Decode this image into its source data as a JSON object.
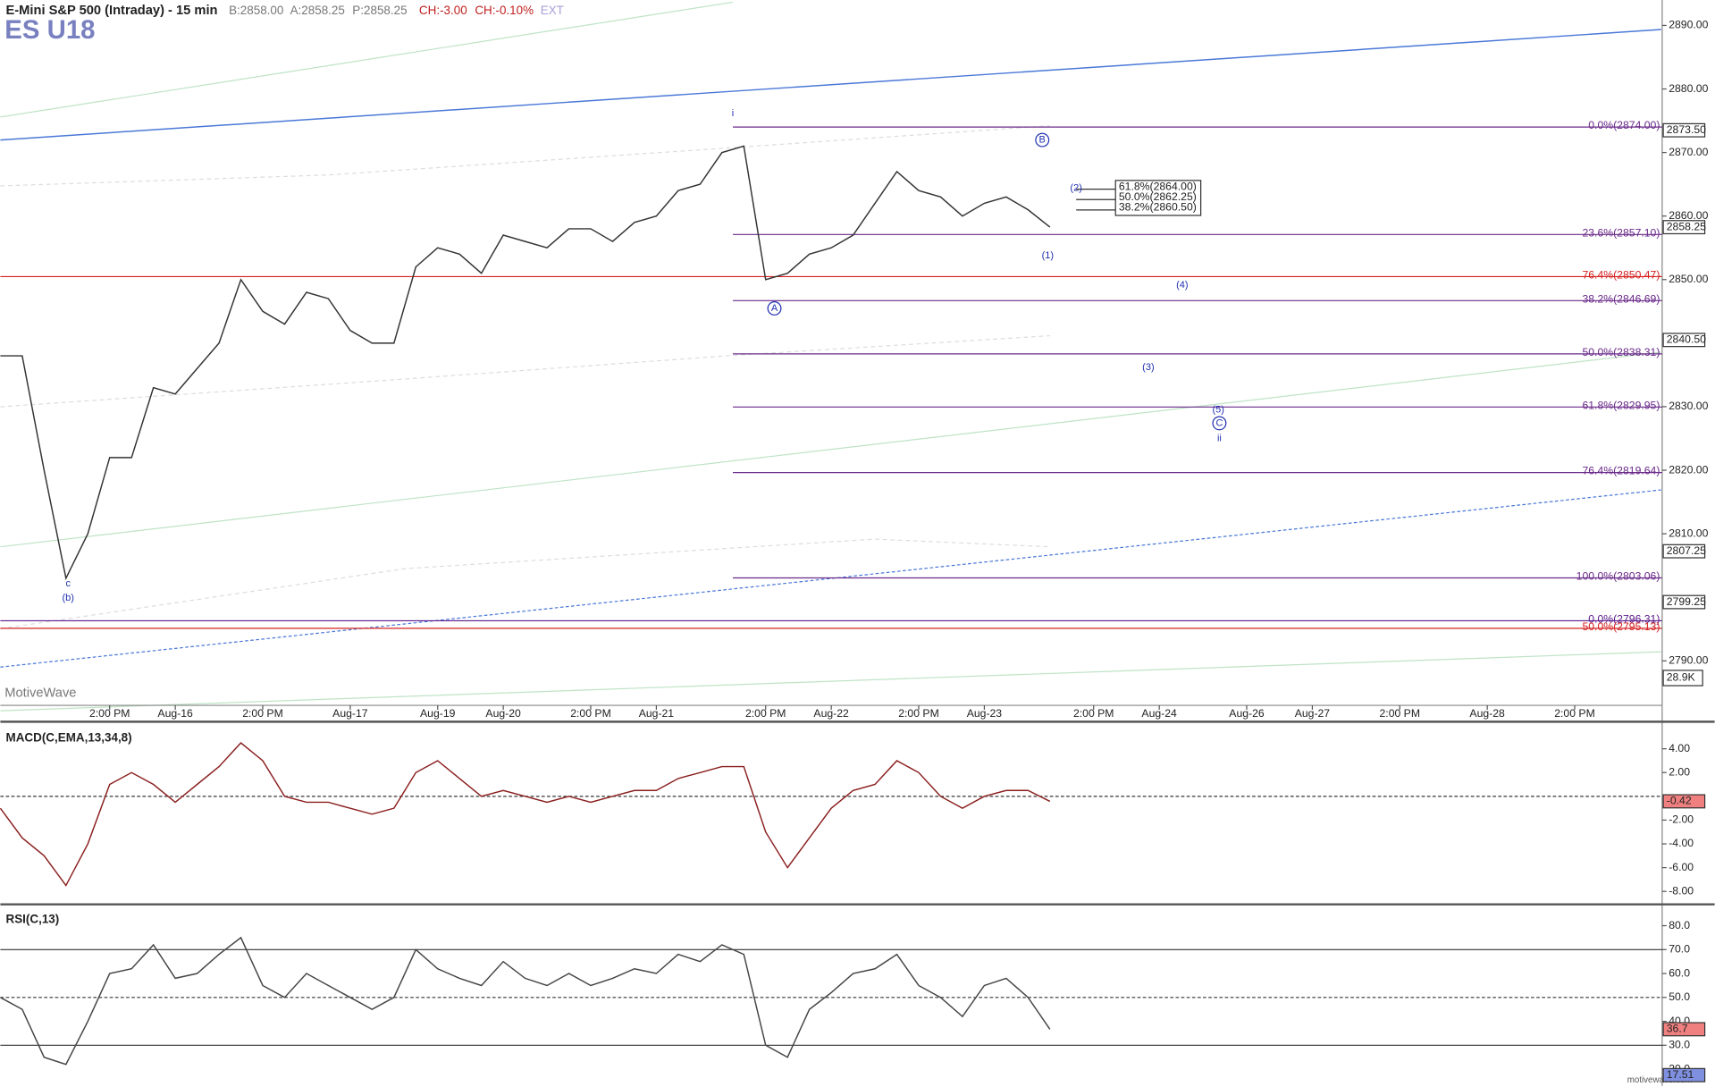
{
  "header": {
    "title": "E-Mini S&P 500 (Intraday) - 15 min",
    "bid": "B:2858.00",
    "ask": "A:2858.25",
    "price": "P:2858.25",
    "change": "CH:-3.00",
    "change_pct": "CH:-0.10%",
    "session": "EXT",
    "symbol": "ES U18",
    "watermark": "MotiveWave",
    "footer": "motivewave.com",
    "volume_label": "28.9K"
  },
  "chart_data": [
    {
      "type": "line",
      "categories": [
        null,
        null,
        null,
        null,
        null,
        "2:00 PM",
        null,
        null,
        "Aug-16",
        null,
        null,
        null,
        "2:00 PM",
        null,
        null,
        null,
        "Aug-17",
        null,
        null,
        null,
        "Aug-19",
        null,
        null,
        "Aug-20",
        null,
        null,
        null,
        "2:00 PM",
        null,
        null,
        "Aug-21",
        null,
        null,
        null,
        null,
        "2:00 PM",
        null,
        null,
        "Aug-22",
        null,
        null,
        null,
        "2:00 PM",
        null,
        null,
        "Aug-23",
        null,
        null,
        null,
        null,
        "2:00 PM",
        null,
        null,
        "Aug-24",
        null,
        null,
        null,
        "Aug-26",
        null,
        null,
        "Aug-27",
        null,
        null,
        null,
        "2:00 PM",
        null,
        null,
        null,
        "Aug-28",
        null,
        null,
        null,
        "2:00 PM",
        null,
        null,
        null
      ],
      "series": [
        {
          "color": "#333333",
          "values": [
            2838,
            2838,
            2820,
            2803,
            2810,
            2822,
            2822,
            2833,
            2832,
            2836,
            2840,
            2850,
            2845,
            2843,
            2848,
            2847,
            2842,
            2840,
            2840,
            2852,
            2855,
            2854,
            2851,
            2857,
            2856,
            2855,
            2858,
            2858,
            2856,
            2859,
            2860,
            2864,
            2865,
            2870,
            2871,
            2850,
            2851,
            2854,
            2855,
            2857,
            2862,
            2867,
            2864,
            2863,
            2860,
            2862,
            2863,
            2861,
            2858.25,
            null,
            null,
            null,
            null,
            null,
            null,
            null,
            null,
            null,
            null,
            null,
            null,
            null,
            null,
            null,
            null,
            null,
            null,
            null,
            null,
            null,
            null,
            null,
            null,
            null,
            null,
            null
          ]
        }
      ],
      "ylim": [
        2783,
        2894
      ],
      "yticks": [
        {
          "value": 2890,
          "label": "2890.00"
        },
        {
          "value": 2880,
          "label": "2880.00"
        },
        {
          "value": 2870,
          "label": "2870.00"
        },
        {
          "value": 2860,
          "label": "2860.00"
        },
        {
          "value": 2850,
          "label": "2850.00"
        },
        {
          "value": 2830,
          "label": "2830.00"
        },
        {
          "value": 2820,
          "label": "2820.00"
        },
        {
          "value": 2810,
          "label": "2810.00"
        },
        {
          "value": 2790,
          "label": "2790.00"
        }
      ],
      "markers": [
        {
          "value": 2873.5,
          "label": "2873.50",
          "color": "#ffffff"
        },
        {
          "value": 2858.25,
          "label": "2858.25",
          "color": "#ffffff"
        },
        {
          "value": 2840.5,
          "label": "2840.50",
          "color": "#ffffff"
        },
        {
          "value": 2807.25,
          "label": "2807.25",
          "color": "#ffffff"
        },
        {
          "value": 2799.25,
          "label": "2799.25",
          "color": "#ffffff"
        }
      ],
      "fib_levels": [
        {
          "value": 2874.0,
          "label": "0.0%(2874.00)"
        },
        {
          "value": 2857.1,
          "label": "23.6%(2857.10)"
        },
        {
          "value": 2846.69,
          "label": "38.2%(2846.69)"
        },
        {
          "value": 2838.31,
          "label": "50.0%(2838.31)"
        },
        {
          "value": 2829.95,
          "label": "61.8%(2829.95)"
        },
        {
          "value": 2819.64,
          "label": "76.4%(2819.64)"
        },
        {
          "value": 2803.06,
          "label": "100.0%(2803.06)"
        }
      ],
      "fib_color": "#6a2a8a",
      "full_levels": [
        {
          "value": 2850.47,
          "label": "76.4%(2850.47)",
          "color": "#d42020"
        },
        {
          "value": 2796.31,
          "label": "0.0%(2796.31)",
          "color": "#5a1a8a"
        },
        {
          "value": 2795.13,
          "label": "50.0%(2795.13)",
          "color": "#d42020"
        }
      ],
      "box_levels": [
        "61.8%(2864.00)",
        "50.0%(2862.25)",
        "38.2%(2860.50)"
      ],
      "wave_labels": [
        "i",
        "B",
        "(2)",
        "(1)",
        "A",
        "(4)",
        "(3)",
        "(5)",
        "C",
        "ii",
        "c",
        "(b)"
      ]
    },
    {
      "type": "line",
      "title": "MACD(C,EMA,13,34,8)",
      "series": [
        {
          "color": "#8b2020",
          "values": [
            -1,
            -3.5,
            -5,
            -7.5,
            -4,
            1,
            2,
            1,
            -0.5,
            1,
            2.5,
            4.5,
            3,
            0,
            -0.5,
            -0.5,
            -1,
            -1.5,
            -1,
            2,
            3,
            1.5,
            0,
            0.5,
            0,
            -0.5,
            0,
            -0.5,
            0,
            0.5,
            0.5,
            1.5,
            2,
            2.5,
            2.5,
            -3,
            -6,
            -3.5,
            -1,
            0.5,
            1,
            3,
            2,
            0,
            -1,
            0,
            0.5,
            0.5,
            -0.42,
            null,
            null,
            null,
            null,
            null,
            null,
            null,
            null,
            null,
            null,
            null,
            null,
            null,
            null,
            null,
            null,
            null,
            null,
            null,
            null,
            null,
            null,
            null,
            null,
            null,
            null,
            null
          ]
        }
      ],
      "ylim": [
        -9,
        6
      ],
      "yticks": [
        {
          "value": 4,
          "label": "4.00"
        },
        {
          "value": 2,
          "label": "2.00"
        },
        {
          "value": -2,
          "label": "-2.00"
        },
        {
          "value": -4,
          "label": "-4.00"
        },
        {
          "value": -6,
          "label": "-6.00"
        },
        {
          "value": -8,
          "label": "-8.00"
        }
      ],
      "ref_lines": [
        0
      ],
      "markers": [
        {
          "value": -0.42,
          "label": "-0.42",
          "color": "#f08080"
        }
      ]
    },
    {
      "type": "line",
      "title": "RSI(C,13)",
      "series": [
        {
          "color": "#444444",
          "values": [
            50,
            45,
            25,
            22,
            40,
            60,
            62,
            72,
            58,
            60,
            68,
            75,
            55,
            50,
            60,
            55,
            50,
            45,
            50,
            70,
            62,
            58,
            55,
            65,
            58,
            55,
            60,
            55,
            58,
            62,
            60,
            68,
            65,
            72,
            68,
            30,
            25,
            45,
            52,
            60,
            62,
            68,
            55,
            50,
            42,
            55,
            58,
            50,
            36.7,
            null,
            null,
            null,
            null,
            null,
            null,
            null,
            null,
            null,
            null,
            null,
            null,
            null,
            null,
            null,
            null,
            null,
            null,
            null,
            null,
            null,
            null,
            null,
            null,
            null,
            null,
            null
          ]
        }
      ],
      "ylim": [
        13,
        88
      ],
      "yticks": [
        {
          "value": 80,
          "label": "80.0"
        },
        {
          "value": 70,
          "label": "70.0"
        },
        {
          "value": 60,
          "label": "60.0"
        },
        {
          "value": 50,
          "label": "50.0"
        },
        {
          "value": 40,
          "label": "40.0"
        },
        {
          "value": 30,
          "label": "30.0"
        },
        {
          "value": 20,
          "label": "20.0"
        }
      ],
      "ref_lines": [
        70,
        50,
        30
      ],
      "markers": [
        {
          "value": 36.7,
          "label": "36.7",
          "color": "#f08080"
        },
        {
          "value": 17.51,
          "label": "17.51",
          "color": "#8090e0"
        }
      ]
    }
  ]
}
